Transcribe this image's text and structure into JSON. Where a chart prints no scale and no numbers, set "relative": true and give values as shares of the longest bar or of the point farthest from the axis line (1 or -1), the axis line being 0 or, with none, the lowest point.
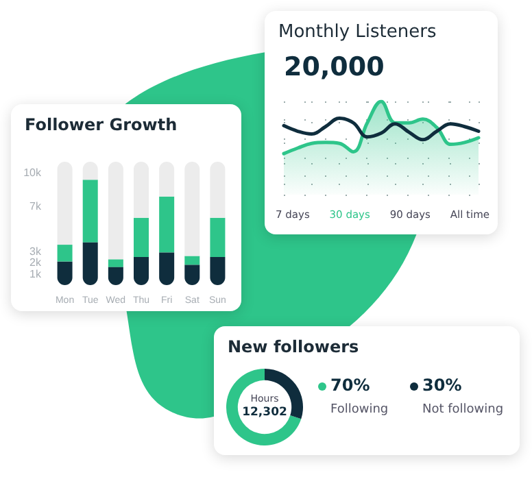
{
  "chart_data": [
    {
      "type": "bar",
      "title": "Follower Growth",
      "stacked": true,
      "categories": [
        "Mon",
        "Tue",
        "Wed",
        "Thu",
        "Fri",
        "Sat",
        "Sun"
      ],
      "series": [
        {
          "color": "#0f2d3d",
          "values": [
            2100,
            3800,
            1600,
            2500,
            2900,
            1800,
            2500
          ]
        },
        {
          "color": "#2ec58a",
          "values": [
            1500,
            5600,
            700,
            3500,
            5000,
            800,
            3500
          ]
        },
        {
          "color": "#ececec",
          "values": [
            7400,
            1600,
            8700,
            5000,
            3100,
            8400,
            5000
          ]
        }
      ],
      "ylim": [
        0,
        11000
      ],
      "yticks": [
        {
          "value": 1000,
          "label": "1k"
        },
        {
          "value": 2000,
          "label": "2k"
        },
        {
          "value": 3000,
          "label": "3k"
        },
        {
          "value": 7000,
          "label": "7k"
        },
        {
          "value": 10000,
          "label": "10k"
        }
      ],
      "grid": false,
      "legend": false
    },
    {
      "type": "line",
      "title": "Monthly Listeners",
      "subtitle": "20,000",
      "relative": true,
      "grid": true,
      "legend": false,
      "marker": "none",
      "categories": [
        null,
        null,
        null,
        null,
        null,
        null,
        null,
        null,
        null,
        null,
        null,
        null,
        null,
        null,
        null
      ],
      "series": [
        {
          "type": "area",
          "color": "#2ec58a",
          "values": [
            0.44,
            0.5,
            0.55,
            0.56,
            0.55,
            0.46,
            0.77,
            1.0,
            0.77,
            0.77,
            0.81,
            0.72,
            0.54,
            0.56,
            0.61
          ]
        },
        {
          "type": "line",
          "color": "#0f2d3d",
          "values": [
            0.74,
            0.68,
            0.65,
            0.73,
            0.82,
            0.77,
            0.62,
            0.66,
            0.76,
            0.67,
            0.59,
            0.68,
            0.76,
            0.73,
            0.68
          ]
        }
      ],
      "annotations": [
        "7 days",
        "30 days",
        "90 days",
        "All time"
      ]
    },
    {
      "type": "donut",
      "title": "New followers",
      "categories": [
        "Following",
        "Not following"
      ],
      "values": [
        70,
        30
      ],
      "colors": [
        "#2ec58a",
        "#0f2d3d"
      ],
      "value_labels": [
        "70%",
        "30%"
      ],
      "legend": "right",
      "annotations": [
        "Hours",
        "12,302"
      ]
    }
  ]
}
